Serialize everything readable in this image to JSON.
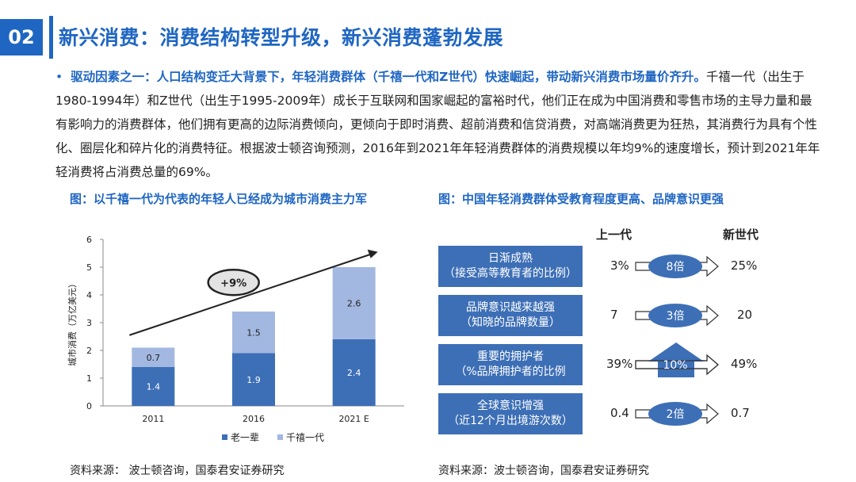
{
  "slide": {
    "number": "02",
    "title": "新兴消费：消费结构转型升级，新兴消费蓬勃发展"
  },
  "body": {
    "bullet": "•",
    "lead": "驱动因素之一：人口结构变迁大背景下，年轻消费群体（千禧一代和Z世代）快速崛起，带动新兴消费市场量价齐升。",
    "text": "千禧一代（出生于1980-1994年）和Z世代（出生于1995-2009年）成长于互联网和国家崛起的富裕时代，他们正在成为中国消费和零售市场的主导力量和最有影响力的消费群体，他们拥有更高的边际消费倾向，更倾向于即时消费、超前消费和信贷消费，对高端消费更为狂热，其消费行为具有个性化、圈层化和碎片化的消费特征。根据波士顿咨询预测，2016年到2021年年轻消费群体的消费规模以年均9%的速度增长，预计到2021年年轻消费将占消费总量的69%。"
  },
  "left_figure": {
    "title": "图：以千禧一代为代表的年轻人已经成为城市消费主力军",
    "source": "资料来源： 波士顿咨询，国泰君安证券研究",
    "growth_label": "+9%"
  },
  "chart_data": {
    "type": "bar",
    "stacked": true,
    "categories": [
      "2011",
      "2016",
      "2021 E"
    ],
    "series": [
      {
        "name": "老一辈",
        "values": [
          1.4,
          1.9,
          2.4
        ],
        "color": "#3d6fb6"
      },
      {
        "name": "千禧一代",
        "values": [
          0.7,
          1.5,
          2.6
        ],
        "color": "#a3b8e0"
      }
    ],
    "ylabel": "城市消费（万亿美元）",
    "ylim": [
      0,
      6
    ],
    "yticks": [
      0,
      1,
      2,
      3,
      4,
      5,
      6
    ],
    "legend": "bottom"
  },
  "right_figure": {
    "title": "图：中国年轻消费群体受教育程度更高、品牌意识更强",
    "source": "资料来源：波士顿咨询，国泰君安证券研究",
    "col_prev": "上一代",
    "col_new": "新世代",
    "rows": [
      {
        "label1": "日渐成熟",
        "label2": "（接受高等教育者的比例）",
        "prev": "3%",
        "mult": "8倍",
        "next": "25%"
      },
      {
        "label1": "品牌意识越来越强",
        "label2": "（知晓的品牌数量）",
        "prev": "7",
        "mult": "3倍",
        "next": "20"
      },
      {
        "label1": "重要的拥护者",
        "label2": "（%品牌拥护者的比例",
        "prev": "39%",
        "mult": "10%",
        "next": "49%"
      },
      {
        "label1": "全球意识增强",
        "label2": "（近12个月出境游次数）",
        "prev": "0.4",
        "mult": "2倍",
        "next": "0.7"
      }
    ]
  }
}
